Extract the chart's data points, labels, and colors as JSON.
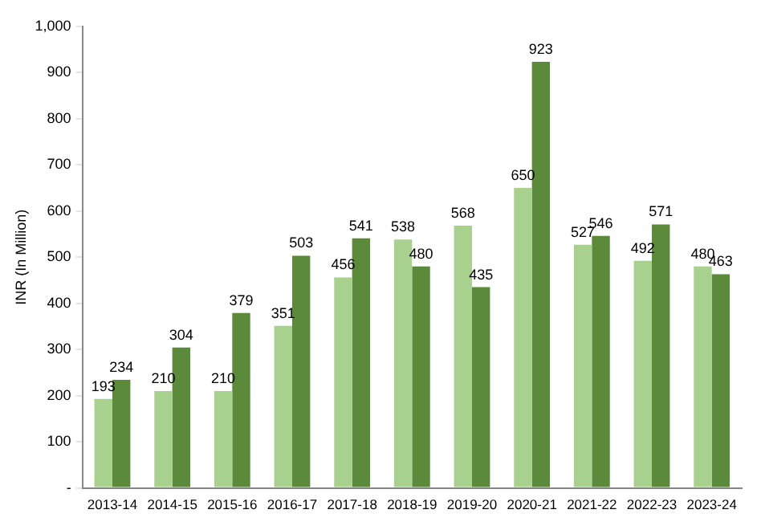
{
  "chart_data": {
    "type": "bar",
    "ylabel": "INR (In Million)",
    "categories": [
      "2013-14",
      "2014-15",
      "2015-16",
      "2016-17",
      "2017-18",
      "2018-19",
      "2019-20",
      "2020-21",
      "2021-22",
      "2022-23",
      "2023-24"
    ],
    "series": [
      {
        "color": "#a9d18e",
        "values": [
          193,
          210,
          210,
          351,
          456,
          538,
          568,
          650,
          527,
          492,
          480
        ]
      },
      {
        "color": "#5b8a3a",
        "values": [
          234,
          304,
          379,
          503,
          541,
          480,
          435,
          923,
          546,
          571,
          463
        ]
      }
    ],
    "ylim": [
      0,
      1000
    ],
    "yticks": [
      {
        "value": 0,
        "label": "-"
      },
      100,
      200,
      300,
      400,
      500,
      600,
      700,
      800,
      900,
      {
        "value": 1000,
        "label": "1,000"
      }
    ],
    "grid": false,
    "legend": false,
    "data_labels": true
  }
}
